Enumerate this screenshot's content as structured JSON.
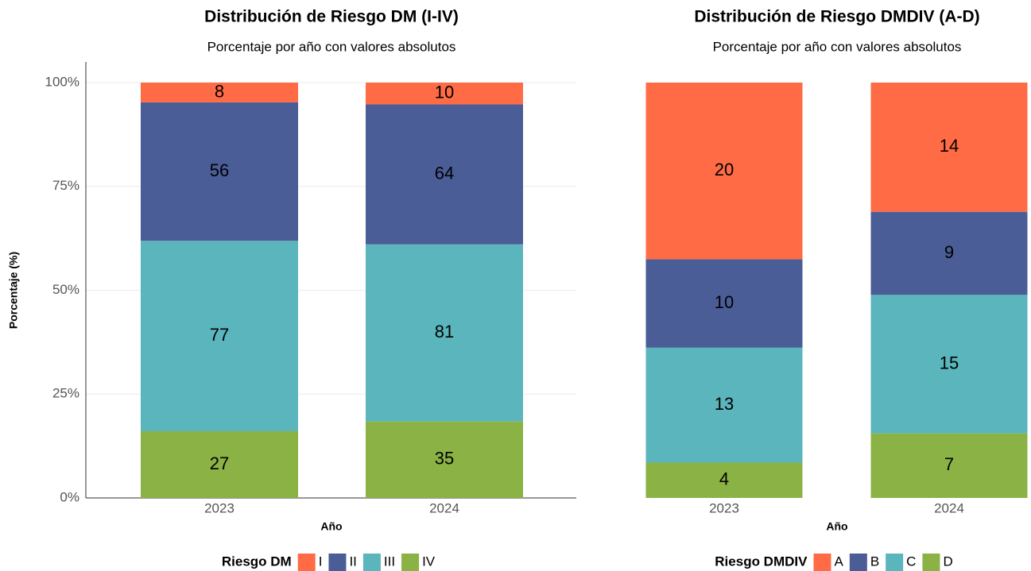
{
  "chart_data": [
    {
      "type": "stacked_percent_bar",
      "title": "Distribución de Riesgo DM (I-IV)",
      "subtitle": "Porcentaje por año con valores absolutos",
      "ylabel": "Porcentaje (%)",
      "xlabel": "Año",
      "legend_title": "Riesgo DM",
      "categories": [
        "2023",
        "2024"
      ],
      "series": [
        {
          "name": "I",
          "color": "#ff6b45",
          "values": [
            8,
            10
          ]
        },
        {
          "name": "II",
          "color": "#4a5d96",
          "values": [
            56,
            64
          ]
        },
        {
          "name": "III",
          "color": "#5bb5bd",
          "values": [
            77,
            81
          ]
        },
        {
          "name": "IV",
          "color": "#8bb244",
          "values": [
            27,
            35
          ]
        }
      ],
      "ylim": [
        0,
        100
      ],
      "yticks": [
        {
          "value": 0,
          "label": "0%"
        },
        {
          "value": 25,
          "label": "25%"
        },
        {
          "value": 50,
          "label": "50%"
        },
        {
          "value": 75,
          "label": "75%"
        },
        {
          "value": 100,
          "label": "100%"
        }
      ],
      "grid": true
    },
    {
      "type": "stacked_percent_bar",
      "title": "Distribución de Riesgo DMDIV (A-D)",
      "subtitle": "Porcentaje por año con valores absolutos",
      "xlabel": "Año",
      "legend_title": "Riesgo DMDIV",
      "categories": [
        "2023",
        "2024"
      ],
      "series": [
        {
          "name": "A",
          "color": "#ff6b45",
          "values": [
            20,
            14
          ]
        },
        {
          "name": "B",
          "color": "#4a5d96",
          "values": [
            10,
            9
          ]
        },
        {
          "name": "C",
          "color": "#5bb5bd",
          "values": [
            13,
            15
          ]
        },
        {
          "name": "D",
          "color": "#8bb244",
          "values": [
            4,
            7
          ]
        }
      ],
      "ylim": [
        0,
        100
      ],
      "grid": false
    }
  ]
}
